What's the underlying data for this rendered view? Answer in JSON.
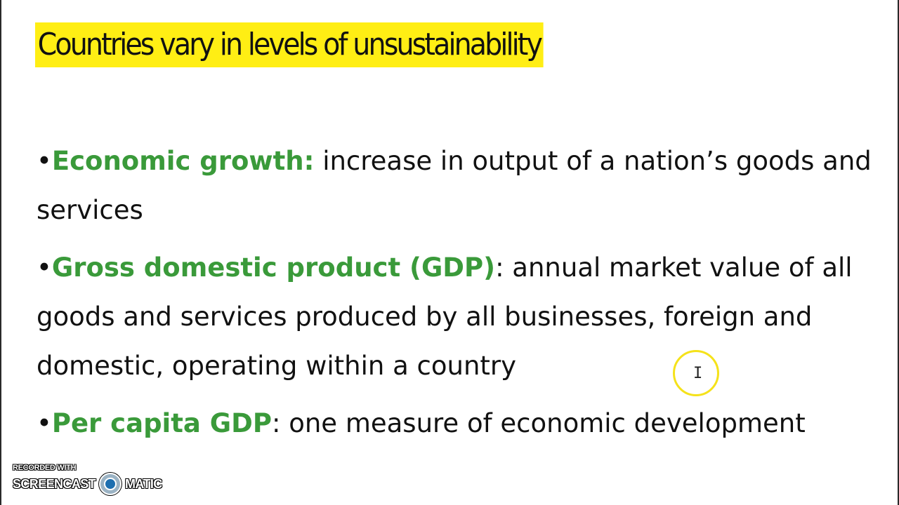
{
  "slide": {
    "title": "Countries vary in levels of unsustainability",
    "bullets": [
      {
        "marker": "•",
        "term": "Economic growth:",
        "text": " increase in output of a nation’s goods and services"
      },
      {
        "marker": "•",
        "term": "Gross domestic product (GDP)",
        "text": ": annual market value of all goods and services produced by all businesses, foreign and domestic, operating within a country"
      },
      {
        "marker": "•",
        "term": "Per capita GDP",
        "text": ": one measure of economic development"
      }
    ]
  },
  "cursor": {
    "icon": "text-ibeam-cursor-icon",
    "glyph": "I"
  },
  "watermark": {
    "top": "RECORDED WITH",
    "left": "SCREENCAST",
    "right": "MATIC",
    "logo_icon": "screencast-o-matic-logo-icon"
  },
  "colors": {
    "title_highlight": "#ffee14",
    "term": "#3a9a3a",
    "cursor_ring": "#f5e21a",
    "text": "#111111"
  }
}
